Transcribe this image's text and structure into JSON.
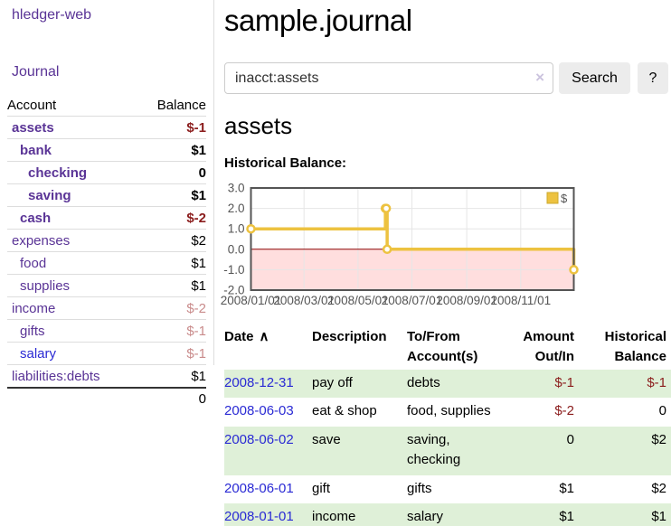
{
  "app_title": "hledger-web",
  "sidebar": {
    "journal_link": "Journal",
    "account_header": "Account",
    "balance_header": "Balance",
    "accounts": [
      {
        "name": "assets",
        "balance": "$-1",
        "level": 1,
        "bold": true,
        "neg": "strong",
        "link_color": "purple"
      },
      {
        "name": "bank",
        "balance": "$1",
        "level": 2,
        "bold": true,
        "neg": "none",
        "link_color": "purple"
      },
      {
        "name": "checking",
        "balance": "0",
        "level": 3,
        "bold": true,
        "neg": "none",
        "link_color": "purple"
      },
      {
        "name": "saving",
        "balance": "$1",
        "level": 3,
        "bold": true,
        "neg": "none",
        "link_color": "purple"
      },
      {
        "name": "cash",
        "balance": "$-2",
        "level": 2,
        "bold": true,
        "neg": "strong",
        "link_color": "purple"
      },
      {
        "name": "expenses",
        "balance": "$2",
        "level": 1,
        "bold": false,
        "neg": "none",
        "link_color": "purple"
      },
      {
        "name": "food",
        "balance": "$1",
        "level": 2,
        "bold": false,
        "neg": "none",
        "link_color": "purple"
      },
      {
        "name": "supplies",
        "balance": "$1",
        "level": 2,
        "bold": false,
        "neg": "none",
        "link_color": "purple"
      },
      {
        "name": "income",
        "balance": "$-2",
        "level": 1,
        "bold": false,
        "neg": "soft",
        "link_color": "purple"
      },
      {
        "name": "gifts",
        "balance": "$-1",
        "level": 2,
        "bold": false,
        "neg": "soft",
        "link_color": "purple"
      },
      {
        "name": "salary",
        "balance": "$-1",
        "level": 2,
        "bold": false,
        "neg": "soft",
        "link_color": "blue"
      },
      {
        "name": "liabilities:debts",
        "balance": "$1",
        "level": 1,
        "bold": false,
        "neg": "none",
        "link_color": "purple"
      }
    ],
    "total": "0"
  },
  "main": {
    "title": "sample.journal",
    "search": {
      "value": "inacct:assets",
      "clear_icon": "×",
      "button_label": "Search",
      "help_label": "?"
    },
    "account_heading": "assets",
    "section_label": "Historical Balance:"
  },
  "chart_data": {
    "type": "line",
    "step": true,
    "title": "Historical Balance",
    "series": [
      {
        "name": "$",
        "color": "#edc240",
        "points": [
          [
            "2008-01-01",
            1
          ],
          [
            "2008-06-01",
            2
          ],
          [
            "2008-06-02",
            2
          ],
          [
            "2008-06-03",
            0
          ],
          [
            "2008-12-31",
            -1
          ]
        ]
      }
    ],
    "x_range": [
      "2008-01-01",
      "2008-12-31"
    ],
    "y_range": [
      -2,
      3
    ],
    "x_ticks": [
      {
        "date": "2008-01-01",
        "label": "2008/01/01"
      },
      {
        "date": "2008-03-01",
        "label": "2008/03/01"
      },
      {
        "date": "2008-05-01",
        "label": "2008/05/01"
      },
      {
        "date": "2008-07-01",
        "label": "2008/07/01"
      },
      {
        "date": "2008-09-01",
        "label": "2008/09/01"
      },
      {
        "date": "2008-11-01",
        "label": "2008/11/01"
      }
    ],
    "y_ticks": [
      "3.0",
      "2.0",
      "1.0",
      "0.0",
      "-1.0",
      "-2.0"
    ],
    "legend": {
      "label": "$",
      "position": "top-right"
    },
    "grid": true,
    "colors": {
      "line": "#edc240",
      "marker_fill": "#ffffff",
      "negative_region": "rgba(255,0,0,0.13)",
      "zero_line": "#8b0000",
      "border": "#545454",
      "gridline": "#e6e6e6",
      "tick_text": "#545454"
    }
  },
  "register": {
    "headers": {
      "date": "Date",
      "description": "Description",
      "accounts": "To/From Account(s)",
      "amount": "Amount Out/In",
      "balance": "Historical Balance"
    },
    "sort_icon_glyph": "∧",
    "rows": [
      {
        "date": "2008-12-31",
        "description": "pay off",
        "accounts": "debts",
        "amount": "$-1",
        "amount_neg": true,
        "balance": "$-1",
        "balance_neg": true,
        "stripe": true
      },
      {
        "date": "2008-06-03",
        "description": "eat & shop",
        "accounts": "food, supplies",
        "amount": "$-2",
        "amount_neg": true,
        "balance": "0",
        "balance_neg": false,
        "stripe": false
      },
      {
        "date": "2008-06-02",
        "description": "save",
        "accounts": "saving,\nchecking",
        "amount": "0",
        "amount_neg": false,
        "balance": "$2",
        "balance_neg": false,
        "stripe": true
      },
      {
        "date": "2008-06-01",
        "description": "gift",
        "accounts": "gifts",
        "amount": "$1",
        "amount_neg": false,
        "balance": "$2",
        "balance_neg": false,
        "stripe": false
      },
      {
        "date": "2008-01-01",
        "description": "income",
        "accounts": "salary",
        "amount": "$1",
        "amount_neg": false,
        "balance": "$1",
        "balance_neg": false,
        "stripe": true
      }
    ]
  }
}
